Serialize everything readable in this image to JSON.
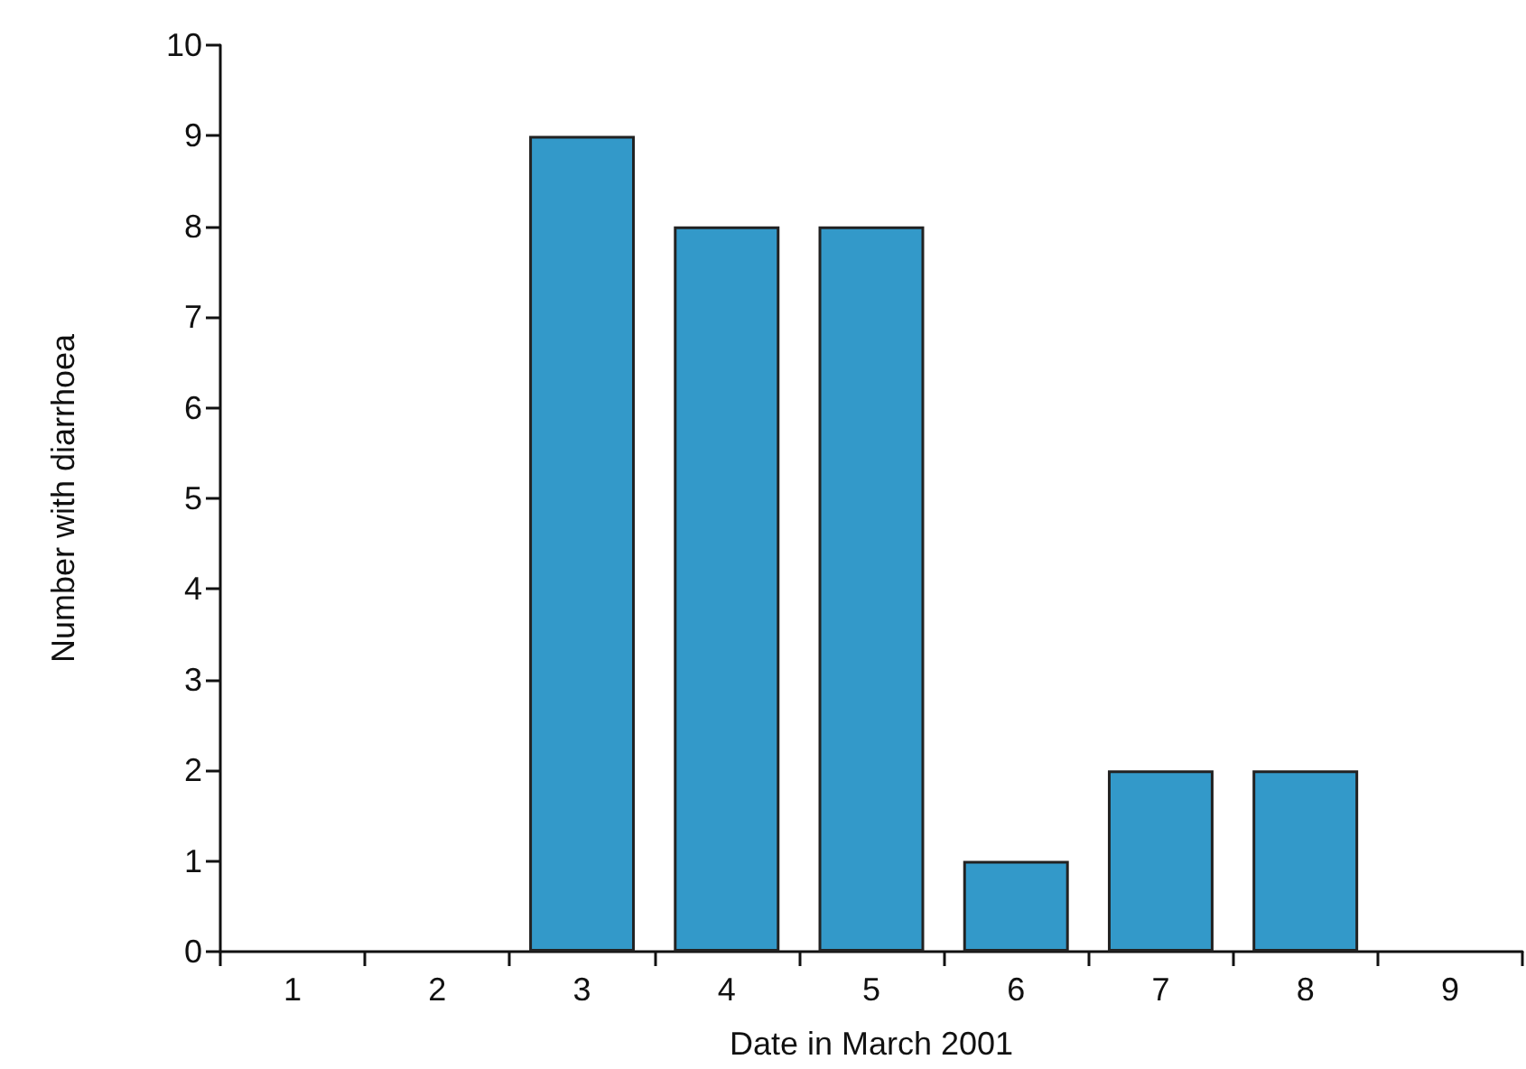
{
  "chart_data": {
    "type": "bar",
    "xlabel": "Date in March 2001",
    "ylabel": "Number with diarrhoea",
    "categories": [
      "1",
      "2",
      "3",
      "4",
      "5",
      "6",
      "7",
      "8",
      "9"
    ],
    "values": [
      0,
      0,
      9,
      8,
      8,
      1,
      2,
      2,
      0
    ],
    "color": "#3399c9",
    "ylim": [
      0,
      10
    ],
    "yticks": [
      0,
      1,
      2,
      3,
      4,
      5,
      6,
      7,
      8,
      9,
      10
    ],
    "grid": false
  }
}
